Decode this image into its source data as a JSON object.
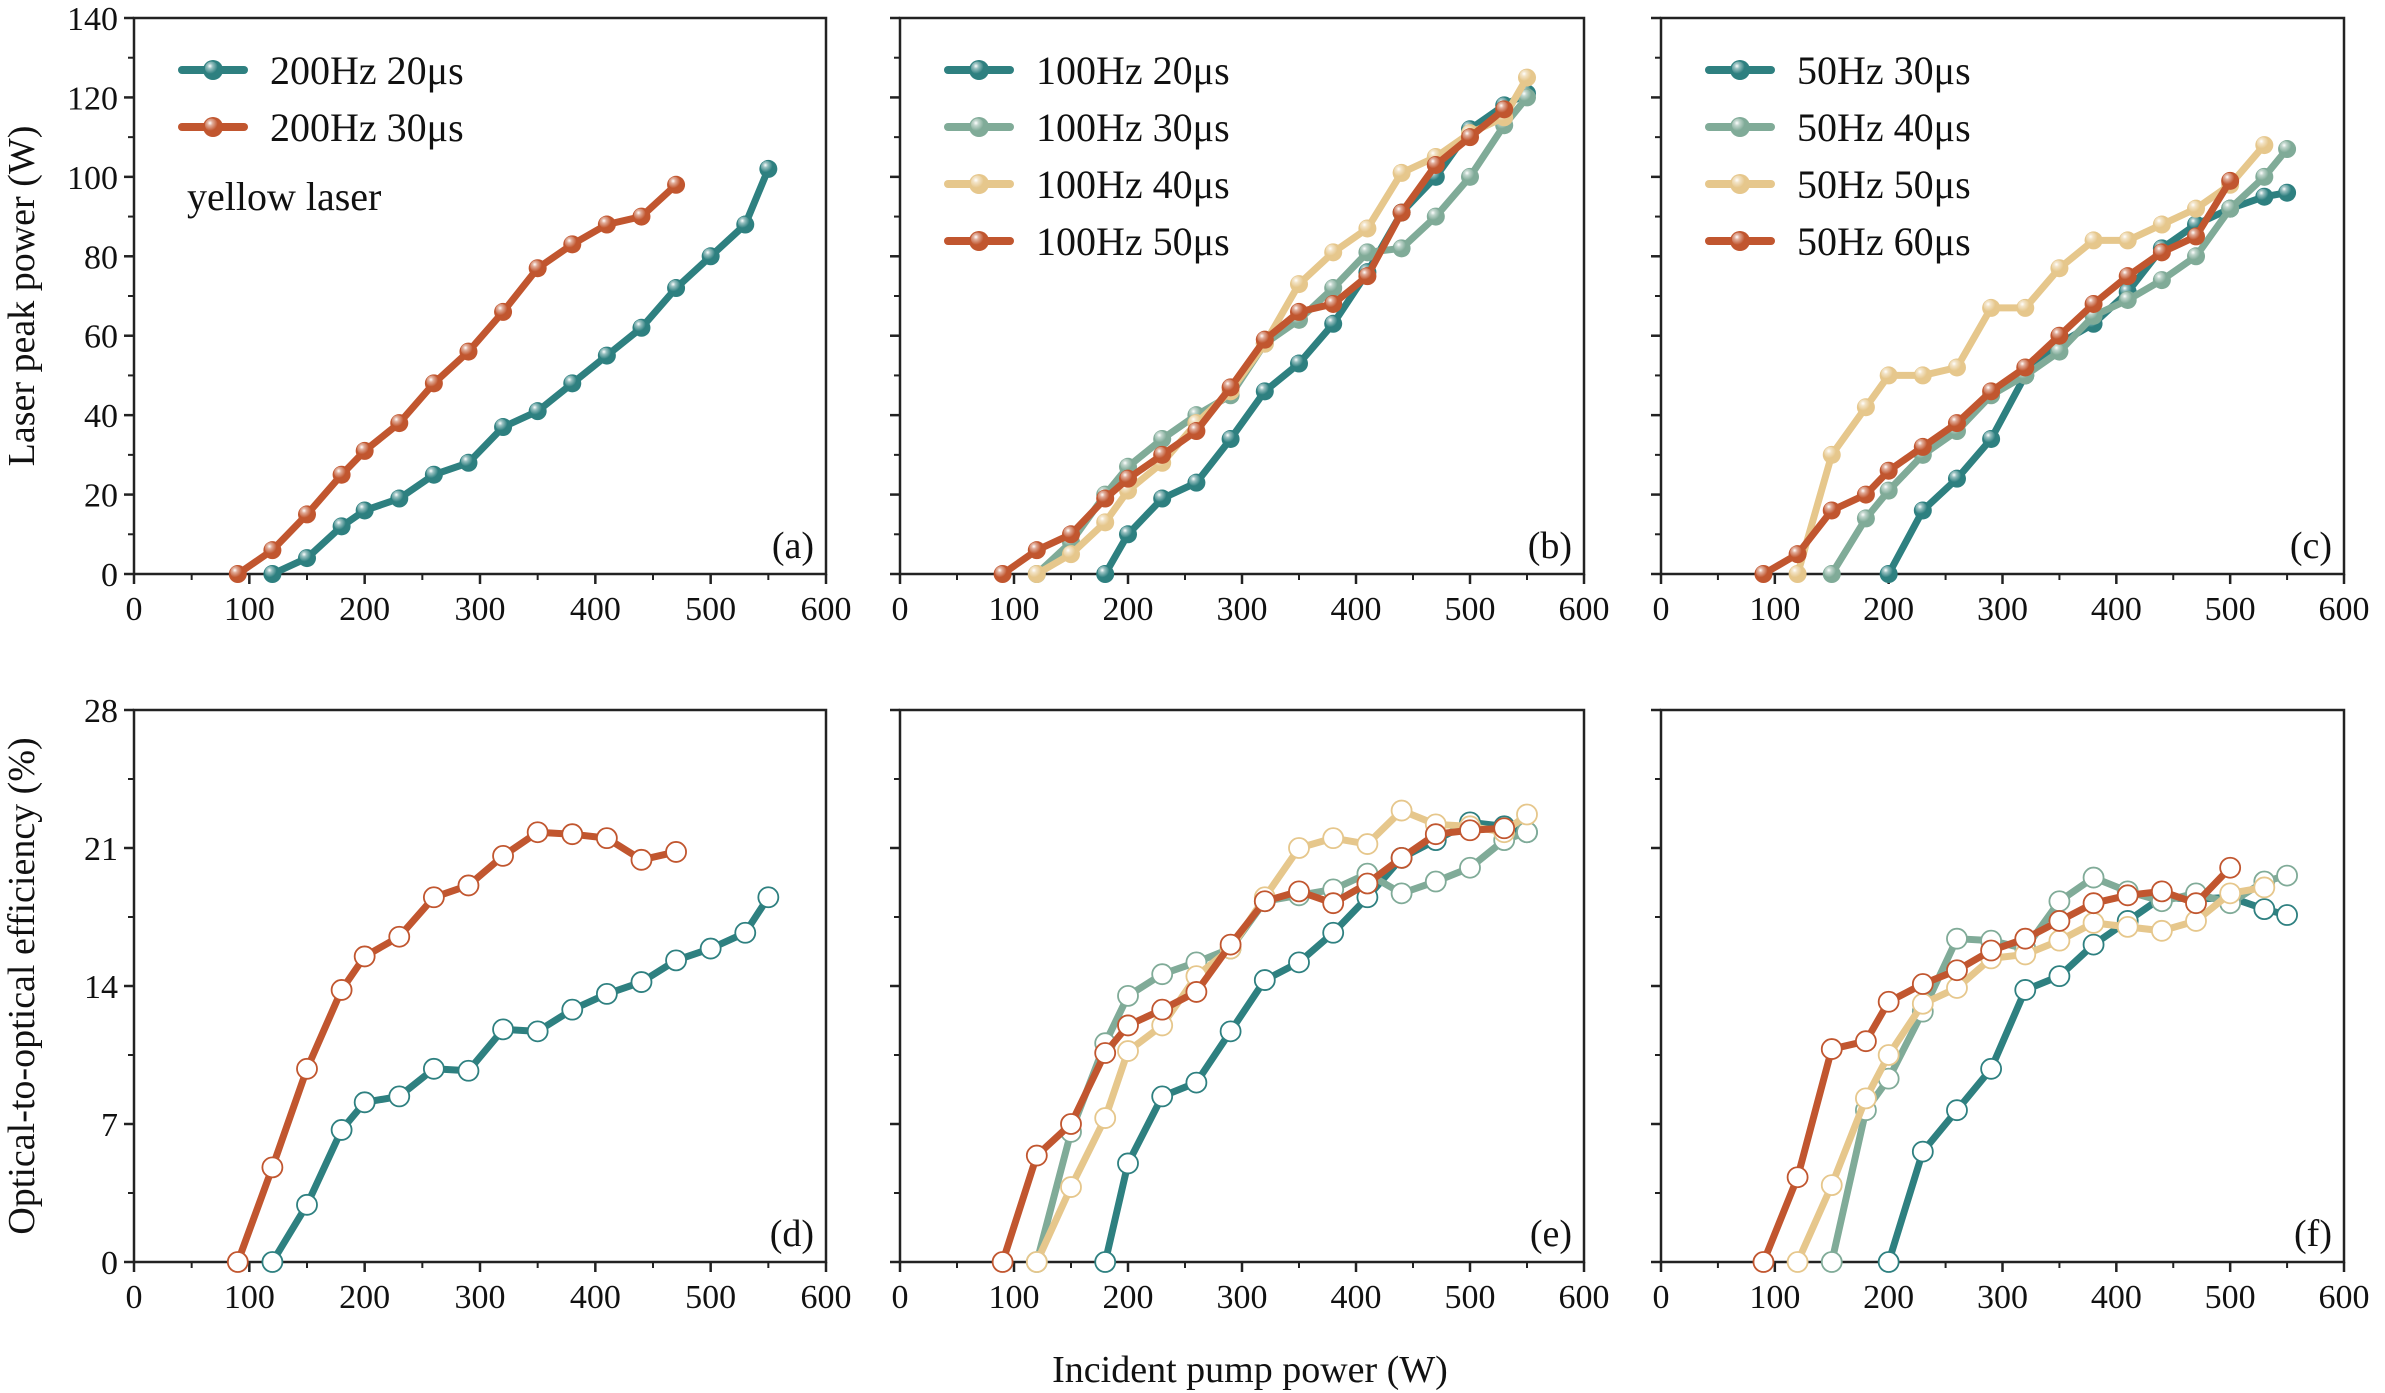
{
  "figure": {
    "xlabel": "Incident pump power (W)",
    "colors": {
      "teal": "#2e8080",
      "sage": "#80ab98",
      "yellow": "#e6c78c",
      "orange": "#c1562f"
    }
  },
  "chart_data": [
    {
      "type": "line",
      "panel": "(a)",
      "row": "top",
      "col": 0,
      "ylabel": "Laser peak power (W)",
      "annotation": "yellow laser",
      "xlim": [
        0,
        600
      ],
      "ylim": [
        0,
        140
      ],
      "xticks": [
        0,
        100,
        200,
        300,
        400,
        500,
        600
      ],
      "yticks": [
        0,
        20,
        40,
        60,
        80,
        100,
        120,
        140
      ],
      "marker": "filled",
      "show_ytick_labels": true,
      "legend": "top-left",
      "series": [
        {
          "name": "200Hz 20μs",
          "color": "#2e8080",
          "x": [
            120,
            150,
            180,
            200,
            230,
            260,
            290,
            320,
            350,
            380,
            410,
            440,
            470,
            500,
            530,
            550
          ],
          "y": [
            0,
            4,
            12,
            16,
            19,
            25,
            28,
            37,
            41,
            48,
            55,
            62,
            72,
            80,
            88,
            102
          ]
        },
        {
          "name": "200Hz 30μs",
          "color": "#c1562f",
          "x": [
            90,
            120,
            150,
            180,
            200,
            230,
            260,
            290,
            320,
            350,
            380,
            410,
            440,
            470
          ],
          "y": [
            0,
            6,
            15,
            25,
            31,
            38,
            48,
            56,
            66,
            77,
            83,
            88,
            90,
            98
          ]
        }
      ]
    },
    {
      "type": "line",
      "panel": "(b)",
      "row": "top",
      "col": 1,
      "xlim": [
        0,
        600
      ],
      "ylim": [
        0,
        140
      ],
      "xticks": [
        0,
        100,
        200,
        300,
        400,
        500,
        600
      ],
      "yticks": [
        0,
        20,
        40,
        60,
        80,
        100,
        120,
        140
      ],
      "marker": "filled",
      "show_ytick_labels": false,
      "legend": "top-left",
      "series": [
        {
          "name": "100Hz 20μs",
          "color": "#2e8080",
          "x": [
            180,
            200,
            230,
            260,
            290,
            320,
            350,
            380,
            410,
            440,
            470,
            500,
            530,
            550
          ],
          "y": [
            0,
            10,
            19,
            23,
            34,
            46,
            53,
            63,
            76,
            91,
            100,
            112,
            118,
            121
          ]
        },
        {
          "name": "100Hz 30μs",
          "color": "#80ab98",
          "x": [
            120,
            150,
            180,
            200,
            230,
            260,
            290,
            320,
            350,
            380,
            410,
            440,
            470,
            500,
            530,
            550
          ],
          "y": [
            0,
            8,
            20,
            27,
            34,
            40,
            45,
            58,
            64,
            72,
            81,
            82,
            90,
            100,
            113,
            120
          ]
        },
        {
          "name": "100Hz 40μs",
          "color": "#e6c78c",
          "x": [
            120,
            150,
            180,
            200,
            230,
            260,
            290,
            320,
            350,
            380,
            410,
            440,
            470,
            500,
            530,
            550
          ],
          "y": [
            0,
            5,
            13,
            21,
            28,
            38,
            46,
            58,
            73,
            81,
            87,
            101,
            105,
            111,
            115,
            125
          ]
        },
        {
          "name": "100Hz 50μs",
          "color": "#c1562f",
          "x": [
            90,
            120,
            150,
            180,
            200,
            230,
            260,
            290,
            320,
            350,
            380,
            410,
            440,
            470,
            500,
            530
          ],
          "y": [
            0,
            6,
            10,
            19,
            24,
            30,
            36,
            47,
            59,
            66,
            68,
            75,
            91,
            103,
            110,
            117
          ]
        }
      ]
    },
    {
      "type": "line",
      "panel": "(c)",
      "row": "top",
      "col": 2,
      "xlim": [
        0,
        600
      ],
      "ylim": [
        0,
        140
      ],
      "xticks": [
        0,
        100,
        200,
        300,
        400,
        500,
        600
      ],
      "yticks": [
        0,
        20,
        40,
        60,
        80,
        100,
        120,
        140
      ],
      "marker": "filled",
      "show_ytick_labels": false,
      "legend": "top-left",
      "series": [
        {
          "name": "50Hz 30μs",
          "color": "#2e8080",
          "x": [
            200,
            230,
            260,
            290,
            320,
            350,
            380,
            410,
            440,
            470,
            500,
            530,
            550
          ],
          "y": [
            0,
            16,
            24,
            34,
            50,
            58,
            63,
            71,
            82,
            88,
            92,
            95,
            96
          ]
        },
        {
          "name": "50Hz 40μs",
          "color": "#80ab98",
          "x": [
            150,
            180,
            200,
            230,
            260,
            290,
            320,
            350,
            380,
            410,
            440,
            470,
            500,
            530,
            550
          ],
          "y": [
            0,
            14,
            21,
            30,
            36,
            45,
            50,
            56,
            65,
            69,
            74,
            80,
            92,
            100,
            107
          ]
        },
        {
          "name": "50Hz 50μs",
          "color": "#e6c78c",
          "x": [
            120,
            150,
            180,
            200,
            230,
            260,
            290,
            320,
            350,
            380,
            410,
            440,
            470,
            500,
            530
          ],
          "y": [
            0,
            30,
            42,
            50,
            50,
            52,
            67,
            67,
            77,
            84,
            84,
            88,
            92,
            98,
            108
          ]
        },
        {
          "name": "50Hz 60μs",
          "color": "#c1562f",
          "x": [
            90,
            120,
            150,
            180,
            200,
            230,
            260,
            290,
            320,
            350,
            380,
            410,
            440,
            470,
            500
          ],
          "y": [
            0,
            5,
            16,
            20,
            26,
            32,
            38,
            46,
            52,
            60,
            68,
            75,
            81,
            85,
            99
          ]
        }
      ]
    },
    {
      "type": "line",
      "panel": "(d)",
      "row": "bottom",
      "col": 0,
      "ylabel": "Optical-to-optical efficiency (%)",
      "xlim": [
        0,
        600
      ],
      "ylim": [
        0,
        28
      ],
      "xticks": [
        0,
        100,
        200,
        300,
        400,
        500,
        600
      ],
      "yticks": [
        0,
        7,
        14,
        21,
        28
      ],
      "marker": "open",
      "show_ytick_labels": true,
      "series": [
        {
          "color": "#2e8080",
          "x": [
            120,
            150,
            180,
            200,
            230,
            260,
            290,
            320,
            350,
            380,
            410,
            440,
            470,
            500,
            530,
            550
          ],
          "y": [
            0,
            2.9,
            6.7,
            8.1,
            8.4,
            9.8,
            9.7,
            11.8,
            11.7,
            12.8,
            13.6,
            14.2,
            15.3,
            15.9,
            16.7,
            18.5
          ]
        },
        {
          "color": "#c1562f",
          "x": [
            90,
            120,
            150,
            180,
            200,
            230,
            260,
            290,
            320,
            350,
            380,
            410,
            440,
            470
          ],
          "y": [
            0,
            4.8,
            9.8,
            13.8,
            15.5,
            16.5,
            18.5,
            19.1,
            20.6,
            21.8,
            21.7,
            21.5,
            20.4,
            20.8
          ]
        }
      ]
    },
    {
      "type": "line",
      "panel": "(e)",
      "row": "bottom",
      "col": 1,
      "xlim": [
        0,
        600
      ],
      "ylim": [
        0,
        28
      ],
      "xticks": [
        0,
        100,
        200,
        300,
        400,
        500,
        600
      ],
      "yticks": [
        0,
        7,
        14,
        21,
        28
      ],
      "marker": "open",
      "show_ytick_labels": false,
      "series": [
        {
          "color": "#2e8080",
          "x": [
            180,
            200,
            230,
            260,
            290,
            320,
            350,
            380,
            410,
            440,
            470,
            500,
            530,
            550
          ],
          "y": [
            0,
            5,
            8.4,
            9.1,
            11.7,
            14.3,
            15.2,
            16.7,
            18.5,
            20.5,
            21.4,
            22.3,
            22.1,
            21.8
          ]
        },
        {
          "color": "#80ab98",
          "x": [
            120,
            150,
            180,
            200,
            230,
            260,
            290,
            320,
            350,
            380,
            410,
            440,
            470,
            500,
            530,
            550
          ],
          "y": [
            0,
            6.6,
            11.1,
            13.5,
            14.6,
            15.2,
            15.9,
            18.3,
            18.6,
            18.9,
            19.7,
            18.7,
            19.3,
            20,
            21.4,
            21.8
          ]
        },
        {
          "color": "#e6c78c",
          "x": [
            120,
            150,
            180,
            200,
            230,
            260,
            290,
            320,
            350,
            380,
            410,
            440,
            470,
            500,
            530,
            550
          ],
          "y": [
            0,
            3.8,
            7.3,
            10.7,
            12,
            14.5,
            15.9,
            18.5,
            21,
            21.5,
            21.2,
            22.9,
            22.2,
            22.1,
            21.8,
            22.7
          ]
        },
        {
          "color": "#c1562f",
          "x": [
            90,
            120,
            150,
            180,
            200,
            230,
            260,
            290,
            320,
            350,
            380,
            410,
            440,
            470,
            500,
            530
          ],
          "y": [
            0,
            5.4,
            7,
            10.6,
            12,
            12.8,
            13.7,
            16.1,
            18.3,
            18.8,
            18.2,
            19.2,
            20.5,
            21.7,
            21.9,
            22
          ]
        }
      ]
    },
    {
      "type": "line",
      "panel": "(f)",
      "row": "bottom",
      "col": 2,
      "xlim": [
        0,
        600
      ],
      "ylim": [
        0,
        28
      ],
      "xticks": [
        0,
        100,
        200,
        300,
        400,
        500,
        600
      ],
      "yticks": [
        0,
        7,
        14,
        21,
        28
      ],
      "marker": "open",
      "show_ytick_labels": false,
      "series": [
        {
          "color": "#2e8080",
          "x": [
            200,
            230,
            260,
            290,
            320,
            350,
            380,
            410,
            440,
            470,
            500,
            530,
            550
          ],
          "y": [
            0,
            5.6,
            7.7,
            9.8,
            13.8,
            14.5,
            16.1,
            17.3,
            18.5,
            18.4,
            18.5,
            17.9,
            17.6
          ]
        },
        {
          "color": "#80ab98",
          "x": [
            150,
            180,
            200,
            230,
            260,
            290,
            320,
            350,
            380,
            410,
            440,
            470,
            500,
            530,
            550
          ],
          "y": [
            0,
            7.7,
            9.3,
            12.7,
            16.4,
            16.3,
            15.9,
            18.3,
            19.5,
            18.8,
            18.3,
            18.7,
            18.2,
            19.3,
            19.6
          ]
        },
        {
          "color": "#e6c78c",
          "x": [
            120,
            150,
            180,
            200,
            230,
            260,
            290,
            320,
            350,
            380,
            410,
            440,
            470,
            500,
            530
          ],
          "y": [
            0,
            3.9,
            8.3,
            10.5,
            13.1,
            13.9,
            15.4,
            15.6,
            16.3,
            17.2,
            17,
            16.8,
            17.3,
            18.7,
            19
          ]
        },
        {
          "color": "#c1562f",
          "x": [
            90,
            120,
            150,
            180,
            200,
            230,
            260,
            290,
            320,
            350,
            380,
            410,
            440,
            470,
            500
          ],
          "y": [
            0,
            4.3,
            10.8,
            11.2,
            13.2,
            14.1,
            14.8,
            15.8,
            16.4,
            17.3,
            18.2,
            18.6,
            18.8,
            18.2,
            20
          ]
        }
      ]
    }
  ]
}
